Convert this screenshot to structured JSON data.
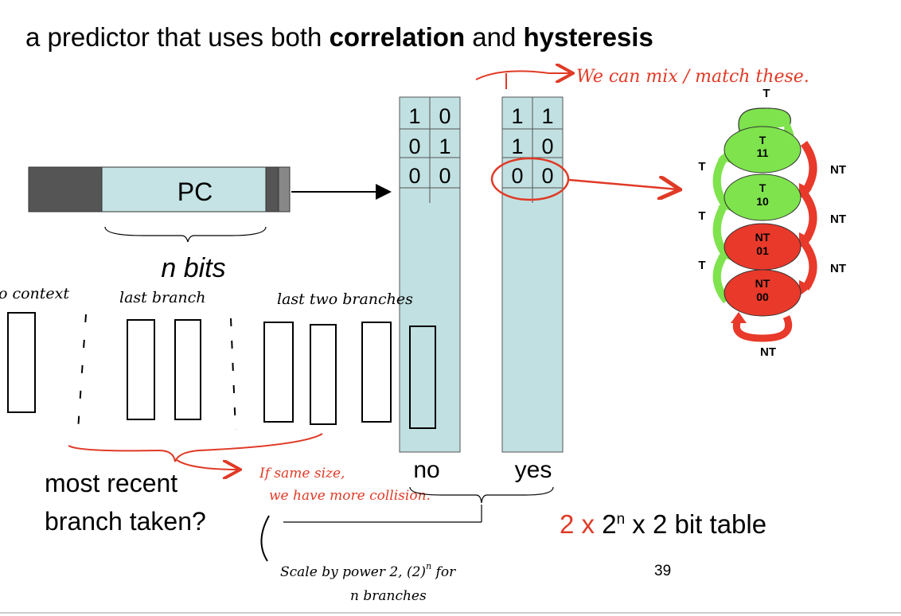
{
  "title": {
    "prefix": "a predictor that uses both ",
    "bold1": "correlation",
    "mid": " and ",
    "bold2": "hysteresis"
  },
  "pc_label": "PC",
  "n_bits_label": "n bits",
  "tables": {
    "no": {
      "label": "no",
      "rows": [
        [
          "1",
          "0"
        ],
        [
          "0",
          "1"
        ],
        [
          "0",
          "0"
        ]
      ]
    },
    "yes": {
      "label": "yes",
      "rows": [
        [
          "1",
          "1"
        ],
        [
          "1",
          "0"
        ],
        [
          "0",
          "0"
        ]
      ]
    }
  },
  "context_labels": {
    "no_context": "o context",
    "last_branch": "last branch",
    "last_two": "last two branches"
  },
  "question": {
    "line1": "most recent",
    "line2": "branch taken?"
  },
  "table_size": {
    "red_part": "2 x",
    "rest_base": "2",
    "rest_exp": "n",
    "rest_tail": " x 2 bit table"
  },
  "annotations": {
    "mix_match": "We can mix / match these.",
    "same_size_1": "If same size,",
    "same_size_2": "we have more collision.",
    "scale_1": "Scale by power 2, (2)",
    "scale_exp": "n",
    "scale_tail": " for",
    "scale_2": "n branches"
  },
  "state_machine": {
    "states": [
      {
        "line1": "T",
        "line2": "11",
        "color": "#7ee34c"
      },
      {
        "line1": "T",
        "line2": "10",
        "color": "#7ee34c"
      },
      {
        "line1": "NT",
        "line2": "01",
        "color": "#e8392a"
      },
      {
        "line1": "NT",
        "line2": "00",
        "color": "#e8392a"
      }
    ],
    "edge_labels": {
      "top": "T",
      "left": [
        "T",
        "T",
        "T"
      ],
      "right": [
        "NT",
        "NT",
        "NT"
      ],
      "bottom": "NT"
    }
  },
  "page_number": "39",
  "colors": {
    "table_fill": "#c1e0e1",
    "pc_fill": "#c5e3e4",
    "accent": "#e03a26",
    "pc_dark": "#555555"
  }
}
